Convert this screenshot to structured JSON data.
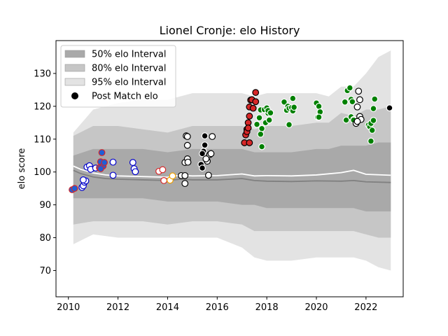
{
  "chart_data": {
    "type": "scatter",
    "title": "Lionel Cronje: elo History",
    "xlabel": "",
    "ylabel": "elo score",
    "xlim": [
      2009.5,
      2023.5
    ],
    "ylim": [
      62,
      140
    ],
    "x_ticks": [
      2010,
      2012,
      2014,
      2016,
      2018,
      2020,
      2022
    ],
    "y_ticks": [
      70,
      80,
      90,
      100,
      110,
      120,
      130
    ],
    "grid": false,
    "legend_position": "top-left",
    "legend": [
      {
        "label": "50% elo Interval",
        "kind": "band",
        "color": "#a9a9a9"
      },
      {
        "label": "80% elo Interval",
        "kind": "band",
        "color": "#c6c6c6"
      },
      {
        "label": "95% elo Interval",
        "kind": "band",
        "color": "#e3e3e3"
      },
      {
        "label": "Post Match elo",
        "kind": "point",
        "color": "#000000"
      }
    ],
    "bands": {
      "x": [
        2010.2,
        2011.0,
        2012.0,
        2013.0,
        2014.0,
        2015.0,
        2016.0,
        2017.0,
        2017.5,
        2018.0,
        2019.0,
        2020.0,
        2020.5,
        2021.0,
        2021.5,
        2022.0,
        2022.5,
        2023.0
      ],
      "p95_hi": [
        112,
        119,
        121,
        122,
        122,
        124,
        124,
        124,
        123,
        124,
        124,
        124,
        123,
        126,
        126,
        130,
        135,
        137
      ],
      "p95_lo": [
        78,
        81,
        80,
        80,
        80,
        80,
        80,
        77,
        74,
        73,
        73,
        74,
        74,
        74,
        74,
        73,
        71,
        70
      ],
      "p80_hi": [
        111,
        114,
        114,
        113,
        112,
        114,
        114,
        114,
        113,
        114,
        114,
        115,
        115,
        118,
        117,
        119,
        119,
        120
      ],
      "p80_lo": [
        84,
        85,
        85,
        85,
        84,
        85,
        85,
        84,
        82,
        82,
        82,
        82,
        82,
        82,
        82,
        81,
        80,
        80
      ],
      "p50_hi": [
        105,
        107,
        107,
        107,
        106,
        107,
        107,
        107,
        106,
        106,
        106,
        107,
        107,
        108,
        108,
        108,
        109,
        109
      ],
      "p50_lo": [
        92,
        92,
        92,
        92,
        91,
        91,
        91,
        90,
        90,
        89,
        89,
        89,
        89,
        89,
        89,
        88,
        88,
        88
      ]
    },
    "lines": [
      {
        "color": "#808080",
        "x": [
          2010.2,
          2010.5,
          2011.0,
          2011.5,
          2012.0,
          2013.0,
          2014.0,
          2014.5,
          2015.0,
          2016.0,
          2017.0,
          2017.5,
          2018.0,
          2019.0,
          2020.0,
          2021.0,
          2021.5,
          2022.0,
          2023.0
        ],
        "y": [
          100.5,
          99.5,
          98.5,
          98.0,
          97.8,
          97.6,
          97.4,
          97.8,
          97.6,
          97.6,
          98.0,
          97.4,
          97.2,
          97.1,
          97.3,
          97.2,
          97.4,
          97.0,
          96.8
        ]
      },
      {
        "color": "#ffffff",
        "x": [
          2010.2,
          2010.5,
          2011.0,
          2011.5,
          2012.0,
          2013.0,
          2014.0,
          2014.5,
          2015.0,
          2016.0,
          2017.0,
          2017.5,
          2018.0,
          2019.0,
          2020.0,
          2021.0,
          2021.5,
          2022.0,
          2023.0
        ],
        "y": [
          101.8,
          100.8,
          99.7,
          99.1,
          98.8,
          98.6,
          98.4,
          99.0,
          98.8,
          98.9,
          99.4,
          98.8,
          98.9,
          98.8,
          99.1,
          99.8,
          100.5,
          99.3,
          99.0
        ]
      }
    ],
    "series": [
      {
        "fill": "#1f5fd6",
        "edge": "#d62728",
        "points": [
          [
            2010.15,
            94.6
          ],
          [
            2010.25,
            95.0
          ]
        ]
      },
      {
        "fill": "#ffffff",
        "edge": "#0000cc",
        "points": [
          [
            2010.55,
            95.3
          ],
          [
            2010.6,
            95.8
          ],
          [
            2010.65,
            96.9
          ],
          [
            2010.7,
            97.3
          ],
          [
            2010.6,
            97.6
          ],
          [
            2010.75,
            101.5
          ],
          [
            2010.85,
            101.9
          ],
          [
            2010.9,
            100.8
          ],
          [
            2011.1,
            101.2
          ],
          [
            2011.8,
            103.0
          ],
          [
            2011.8,
            99.0
          ]
        ]
      },
      {
        "fill": "#1f5fd6",
        "edge": "#d62728",
        "points": [
          [
            2011.25,
            101.3
          ],
          [
            2011.3,
            103.1
          ],
          [
            2011.35,
            105.9
          ],
          [
            2011.4,
            101.8
          ],
          [
            2011.45,
            102.9
          ],
          [
            2011.3,
            101.0
          ]
        ]
      },
      {
        "fill": "#ffffff",
        "edge": "#0000cc",
        "points": [
          [
            2012.6,
            102.9
          ],
          [
            2012.65,
            101.0
          ],
          [
            2012.7,
            100.1
          ]
        ]
      },
      {
        "fill": "#ffffff",
        "edge": "#d62728",
        "points": [
          [
            2013.65,
            100.2
          ],
          [
            2013.8,
            100.7
          ],
          [
            2013.85,
            97.4
          ]
        ]
      },
      {
        "fill": "#ffffff",
        "edge": "#f0a000",
        "points": [
          [
            2014.1,
            97.5
          ],
          [
            2014.2,
            98.8
          ]
        ]
      },
      {
        "fill": "#ffffff",
        "edge": "#000000",
        "points": [
          [
            2014.55,
            98.9
          ],
          [
            2014.7,
            96.5
          ],
          [
            2014.7,
            98.9
          ],
          [
            2014.7,
            102.9
          ],
          [
            2014.75,
            111.0
          ],
          [
            2014.8,
            110.8
          ],
          [
            2014.8,
            104.0
          ],
          [
            2014.82,
            103.0
          ],
          [
            2014.8,
            108.1
          ]
        ]
      },
      {
        "fill": "#000000",
        "edge": "#ffffff",
        "points": [
          [
            2015.35,
            102.3
          ],
          [
            2015.4,
            101.2
          ],
          [
            2015.45,
            106.3
          ],
          [
            2015.5,
            108.2
          ],
          [
            2015.5,
            111.0
          ],
          [
            2015.4,
            105.6
          ]
        ]
      },
      {
        "fill": "#ffffff",
        "edge": "#000000",
        "points": [
          [
            2015.6,
            103.3
          ],
          [
            2015.65,
            99.0
          ],
          [
            2015.7,
            105.3
          ],
          [
            2015.75,
            105.6
          ],
          [
            2015.8,
            110.8
          ],
          [
            2015.55,
            104.0
          ]
        ]
      },
      {
        "fill": "#d62728",
        "edge": "#000000",
        "points": [
          [
            2017.1,
            108.9
          ],
          [
            2017.15,
            111.3
          ],
          [
            2017.2,
            113.0
          ],
          [
            2017.25,
            115.0
          ],
          [
            2017.2,
            112.3
          ],
          [
            2017.3,
            117.0
          ],
          [
            2017.3,
            119.8
          ],
          [
            2017.35,
            121.9
          ],
          [
            2017.4,
            122.0
          ],
          [
            2017.45,
            119.4
          ],
          [
            2017.55,
            124.2
          ],
          [
            2017.55,
            121.4
          ],
          [
            2017.25,
            113.4
          ],
          [
            2017.3,
            108.9
          ]
        ]
      },
      {
        "fill": "#008000",
        "edge": "#ffffff",
        "points": [
          [
            2017.6,
            114.5
          ],
          [
            2017.7,
            116.5
          ],
          [
            2017.75,
            118.9
          ],
          [
            2017.8,
            113.2
          ],
          [
            2017.75,
            111.5
          ],
          [
            2017.8,
            107.7
          ],
          [
            2017.9,
            119.0
          ],
          [
            2017.95,
            115.0
          ],
          [
            2018.0,
            119.5
          ],
          [
            2018.05,
            117.9
          ],
          [
            2018.1,
            115.8
          ],
          [
            2018.05,
            118.7
          ],
          [
            2018.15,
            118.0
          ],
          [
            2018.7,
            121.3
          ],
          [
            2018.8,
            118.8
          ],
          [
            2018.85,
            120.0
          ],
          [
            2018.9,
            119.4
          ],
          [
            2018.9,
            114.4
          ],
          [
            2019.05,
            122.4
          ],
          [
            2019.0,
            119.6
          ],
          [
            2019.05,
            118.6
          ],
          [
            2019.1,
            119.7
          ]
        ]
      },
      {
        "fill": "#008000",
        "edge": "#ffffff",
        "points": [
          [
            2020.0,
            121.0
          ],
          [
            2020.05,
            116.7
          ],
          [
            2020.1,
            120.0
          ],
          [
            2020.15,
            118.3
          ],
          [
            2020.1,
            116.7
          ]
        ]
      },
      {
        "fill": "#008000",
        "edge": "#ffffff",
        "points": [
          [
            2021.15,
            121.3
          ],
          [
            2021.2,
            115.8
          ],
          [
            2021.25,
            124.8
          ],
          [
            2021.35,
            125.6
          ],
          [
            2021.4,
            122.1
          ],
          [
            2021.4,
            116.8
          ],
          [
            2021.45,
            121.4
          ],
          [
            2021.5,
            116.0
          ],
          [
            2021.5,
            115.8
          ],
          [
            2022.1,
            114.3
          ],
          [
            2022.15,
            113.8
          ],
          [
            2022.2,
            114.8
          ],
          [
            2022.2,
            109.4
          ],
          [
            2022.25,
            112.7
          ],
          [
            2022.3,
            115.7
          ],
          [
            2022.3,
            119.3
          ],
          [
            2022.35,
            122.2
          ]
        ]
      },
      {
        "fill": "#ffffff",
        "edge": "#000000",
        "points": [
          [
            2021.6,
            114.8
          ],
          [
            2021.65,
            119.8
          ],
          [
            2021.7,
            124.6
          ],
          [
            2021.75,
            122.0
          ],
          [
            2021.75,
            116.9
          ],
          [
            2021.8,
            116.0
          ],
          [
            2021.65,
            115.4
          ]
        ]
      },
      {
        "fill": "#000000",
        "edge": "#ffffff",
        "points": [
          [
            2022.95,
            119.5
          ]
        ]
      }
    ]
  }
}
